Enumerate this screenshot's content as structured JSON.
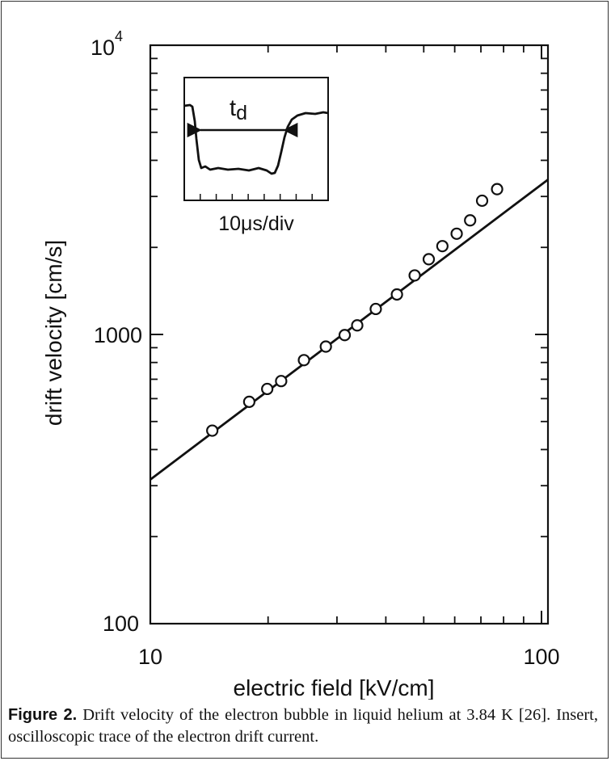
{
  "chart_data": {
    "type": "scatter",
    "title": "",
    "xlabel": "electric field [kV/cm]",
    "ylabel": "drift velocity [cm/s]",
    "xscale": "log",
    "yscale": "log",
    "xlim": [
      10,
      100
    ],
    "ylim": [
      100,
      10000
    ],
    "x_tick_labels": [
      "10",
      "100"
    ],
    "y_tick_labels": [
      {
        "base": "10",
        "exp": "4"
      },
      {
        "base": "1000",
        "exp": ""
      },
      {
        "base": "100",
        "exp": ""
      }
    ],
    "grid": false,
    "series": [
      {
        "marker": "open-circle",
        "x": [
          14.4,
          17.9,
          19.9,
          21.6,
          24.7,
          28.1,
          31.4,
          33.8,
          37.7,
          42.7,
          47.4,
          51.5,
          55.8,
          60.7,
          65.7,
          70.5,
          77.0
        ],
        "y": [
          465,
          585,
          648,
          690,
          815,
          908,
          995,
          1075,
          1225,
          1375,
          1600,
          1820,
          2020,
          2230,
          2480,
          2900,
          3180
        ]
      }
    ],
    "fit_line": {
      "x": [
        10,
        100
      ],
      "y": [
        315,
        3300
      ]
    }
  },
  "inset": {
    "td_label": "t",
    "td_subscript": "d",
    "timebase_label": "10μs/div"
  },
  "caption": {
    "figure_number": "Figure 2.",
    "text": "Drift velocity of the electron bubble in liquid helium at 3.84 K [26]. Insert, oscilloscopic trace of the electron drift current."
  }
}
